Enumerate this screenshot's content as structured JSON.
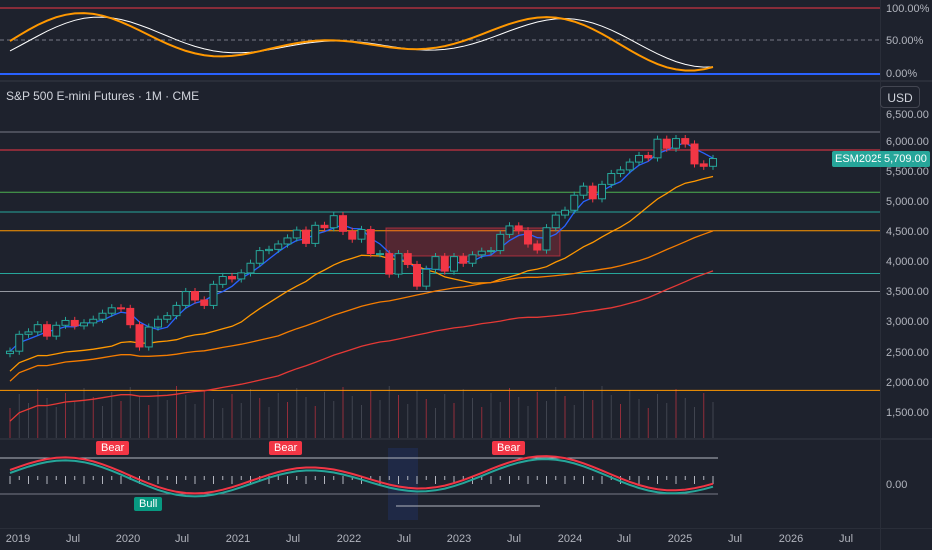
{
  "symbol": {
    "title": "S&P 500 E-mini Futures · 1M · CME",
    "ticker": "ESM2025",
    "last_price": "5,709.00",
    "currency_button": "USD"
  },
  "colors": {
    "background": "#1e222d",
    "grid": "#2a2e39",
    "up_candle": "#1e222d",
    "up_border": "#26a69a",
    "down_candle": "#f23645",
    "ma_fast": "#2962ff",
    "ma_mid": "#ff9800",
    "ma_slow_orange": "#f57c00",
    "ma_long": "#e53935",
    "rsi_line": "#ffffff",
    "accent_green": "#26a69a"
  },
  "rsi_panel": {
    "labels": [
      "100.00%",
      "50.00%",
      "0.00%"
    ]
  },
  "price_axis": {
    "labels": [
      "6,500.00",
      "6,000.00",
      "5,500.00",
      "5,000.00",
      "4,500.00",
      "4,000.00",
      "3,500.00",
      "3,000.00",
      "2,500.00",
      "2,000.00",
      "1,500.00"
    ]
  },
  "osc_panel": {
    "label": "0.00"
  },
  "signals": [
    {
      "label": "Bear",
      "kind": "bear"
    },
    {
      "label": "Bear",
      "kind": "bear"
    },
    {
      "label": "Bear",
      "kind": "bear"
    },
    {
      "label": "Bull",
      "kind": "bull"
    }
  ],
  "time_axis": {
    "labels": [
      "2019",
      "Jul",
      "2020",
      "Jul",
      "2021",
      "Jul",
      "2022",
      "Jul",
      "2023",
      "Jul",
      "2024",
      "Jul",
      "2025",
      "Jul",
      "2026",
      "Jul"
    ]
  },
  "chart_data": {
    "type": "candlestick",
    "title": "S&P 500 E-mini Futures · 1M · CME",
    "y_range": [
      1200,
      6700
    ],
    "monthly_closes": [
      2510,
      2790,
      2830,
      2950,
      2760,
      2940,
      3020,
      2930,
      2980,
      3040,
      3140,
      3230,
      3220,
      2950,
      2580,
      2910,
      3040,
      3100,
      3270,
      3500,
      3360,
      3270,
      3620,
      3750,
      3710,
      3810,
      3970,
      4180,
      4200,
      4290,
      4390,
      4520,
      4300,
      4600,
      4560,
      4760,
      4500,
      4370,
      4530,
      4130,
      4130,
      3790,
      4130,
      3950,
      3590,
      3870,
      4080,
      3840,
      4080,
      3970,
      4110,
      4170,
      4180,
      4450,
      4590,
      4510,
      4290,
      4190,
      4560,
      4770,
      4850,
      5100,
      5250,
      5040,
      5280,
      5460,
      5520,
      5650,
      5760,
      5720,
      6030,
      5880,
      6040,
      5950,
      5620,
      5580,
      5709
    ],
    "levels": [
      6150,
      5850,
      5150,
      4820,
      4510,
      3800,
      3500,
      1860
    ]
  }
}
